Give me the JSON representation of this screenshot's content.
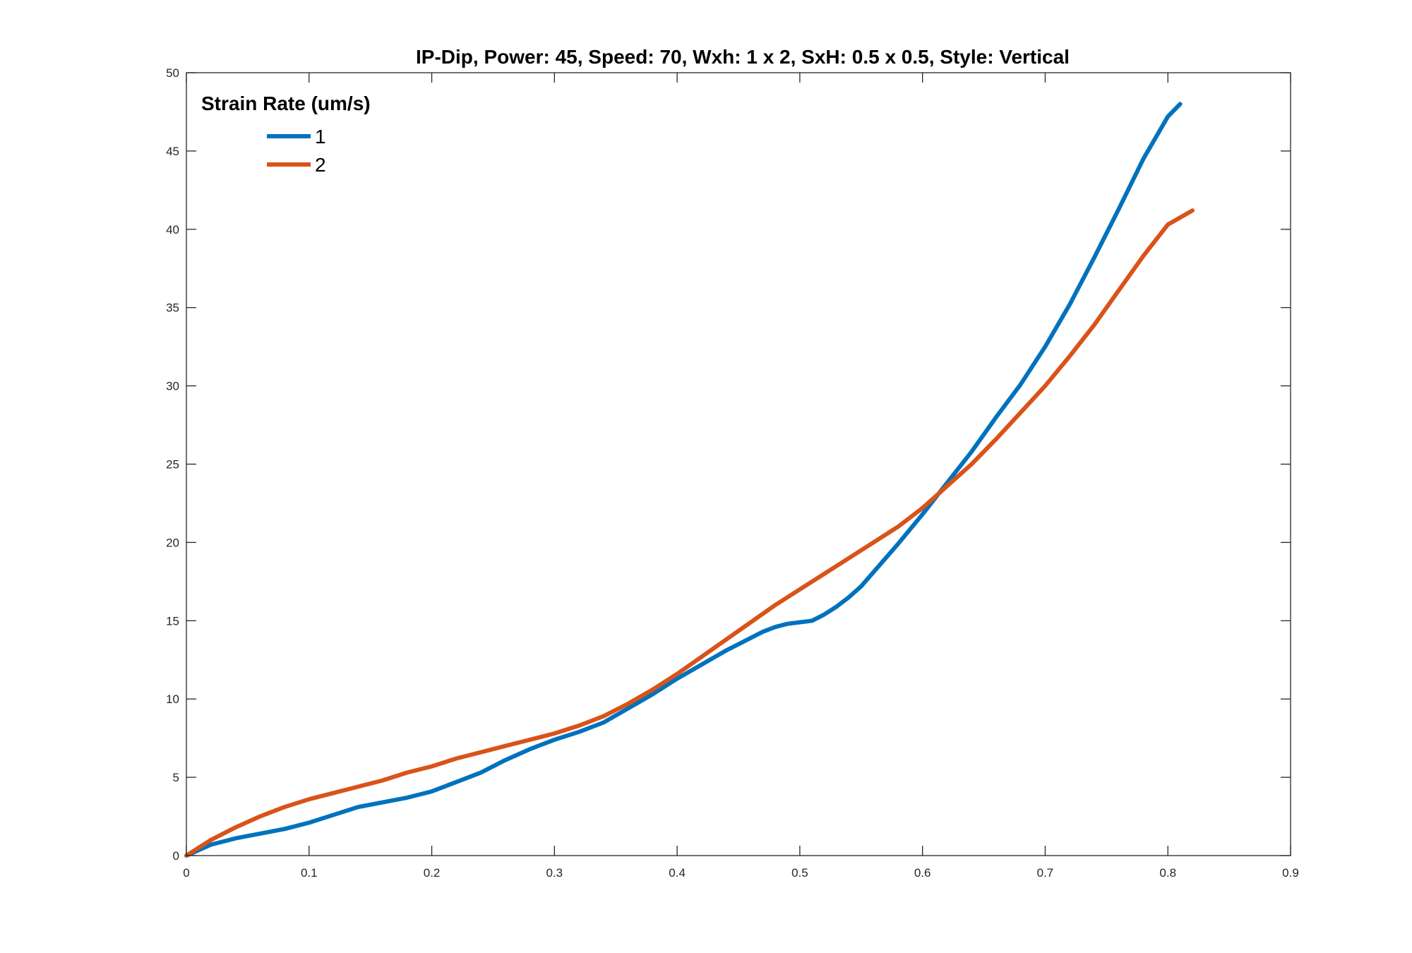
{
  "chart_data": {
    "type": "line",
    "title": "IP-Dip, Power: 45, Speed: 70, Wxh: 1 x 2, SxH: 0.5 x 0.5, Style: Vertical",
    "xlabel": "",
    "ylabel": "",
    "xlim": [
      0,
      0.9
    ],
    "ylim": [
      0,
      50
    ],
    "xticks": [
      0,
      0.1,
      0.2,
      0.3,
      0.4,
      0.5,
      0.6,
      0.7,
      0.8,
      0.9
    ],
    "xtick_labels": [
      "0",
      "0.1",
      "0.2",
      "0.3",
      "0.4",
      "0.5",
      "0.6",
      "0.7",
      "0.8",
      "0.9"
    ],
    "yticks": [
      0,
      5,
      10,
      15,
      20,
      25,
      30,
      35,
      40,
      45,
      50
    ],
    "ytick_labels": [
      "0",
      "5",
      "10",
      "15",
      "20",
      "25",
      "30",
      "35",
      "40",
      "45",
      "50"
    ],
    "grid": false,
    "legend": {
      "title": "Strain Rate (um/s)",
      "placement": "top-left"
    },
    "series": [
      {
        "name": "1",
        "color": "#0072BD",
        "x": [
          0,
          0.02,
          0.04,
          0.06,
          0.08,
          0.1,
          0.12,
          0.14,
          0.16,
          0.18,
          0.2,
          0.22,
          0.24,
          0.26,
          0.28,
          0.3,
          0.32,
          0.34,
          0.36,
          0.38,
          0.4,
          0.42,
          0.44,
          0.46,
          0.47,
          0.48,
          0.49,
          0.5,
          0.51,
          0.52,
          0.53,
          0.54,
          0.55,
          0.56,
          0.58,
          0.6,
          0.62,
          0.64,
          0.66,
          0.68,
          0.7,
          0.72,
          0.74,
          0.76,
          0.78,
          0.8,
          0.81
        ],
        "y": [
          0,
          0.7,
          1.1,
          1.4,
          1.7,
          2.1,
          2.6,
          3.1,
          3.4,
          3.7,
          4.1,
          4.7,
          5.3,
          6.1,
          6.8,
          7.4,
          7.9,
          8.5,
          9.4,
          10.3,
          11.3,
          12.2,
          13.1,
          13.9,
          14.3,
          14.6,
          14.8,
          14.9,
          15.0,
          15.4,
          15.9,
          16.5,
          17.2,
          18.1,
          19.9,
          21.8,
          23.8,
          25.8,
          28.0,
          30.1,
          32.5,
          35.2,
          38.2,
          41.3,
          44.5,
          47.2,
          48.0
        ]
      },
      {
        "name": "2",
        "color": "#D95319",
        "x": [
          0,
          0.02,
          0.04,
          0.06,
          0.08,
          0.1,
          0.12,
          0.14,
          0.16,
          0.18,
          0.2,
          0.22,
          0.24,
          0.26,
          0.28,
          0.3,
          0.32,
          0.34,
          0.36,
          0.38,
          0.4,
          0.42,
          0.44,
          0.46,
          0.48,
          0.5,
          0.52,
          0.54,
          0.56,
          0.58,
          0.6,
          0.62,
          0.64,
          0.66,
          0.68,
          0.7,
          0.72,
          0.74,
          0.76,
          0.78,
          0.8,
          0.82
        ],
        "y": [
          0,
          1.0,
          1.8,
          2.5,
          3.1,
          3.6,
          4.0,
          4.4,
          4.8,
          5.3,
          5.7,
          6.2,
          6.6,
          7.0,
          7.4,
          7.8,
          8.3,
          8.9,
          9.7,
          10.6,
          11.6,
          12.7,
          13.8,
          14.9,
          16.0,
          17.0,
          18.0,
          19.0,
          20.0,
          21.0,
          22.2,
          23.6,
          25.0,
          26.6,
          28.3,
          30.0,
          31.9,
          33.9,
          36.1,
          38.3,
          40.3,
          41.2
        ]
      }
    ]
  }
}
